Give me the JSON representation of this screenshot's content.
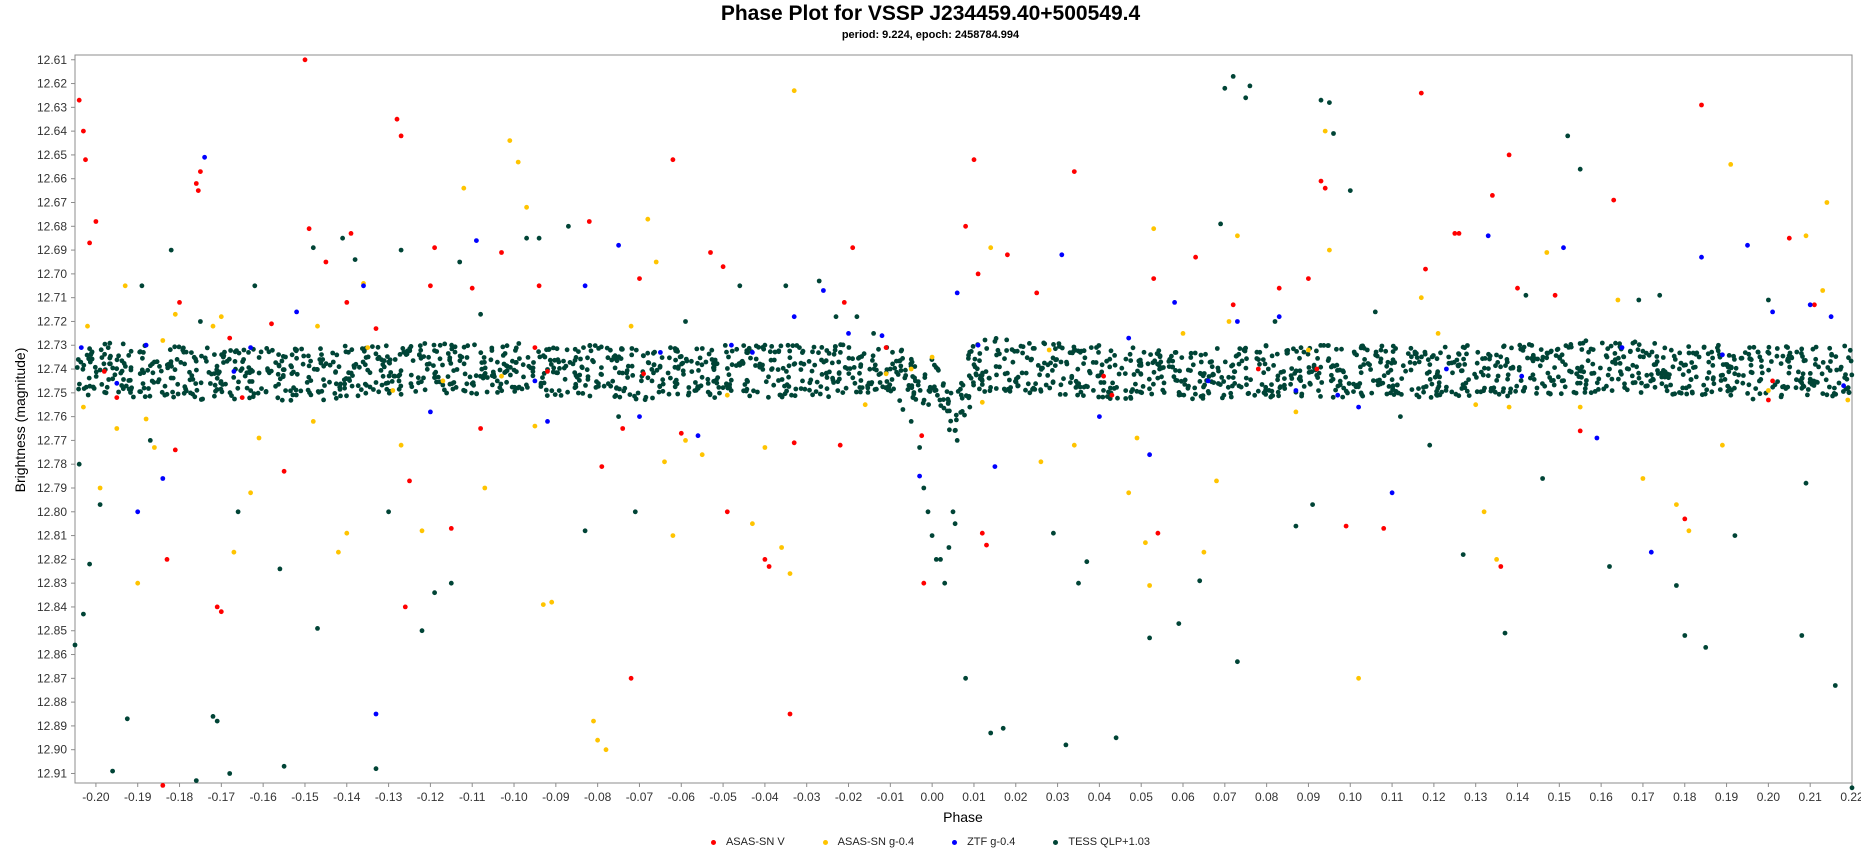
{
  "chart_data": {
    "type": "scatter",
    "title": "Phase Plot for VSSP J234459.40+500549.4",
    "subtitle": "period: 9.224, epoch: 2458784.994",
    "xlabel": "Phase",
    "ylabel": "Brightness (magnitude)",
    "xlim": [
      -0.205,
      0.22
    ],
    "ylim": [
      12.608,
      12.914
    ],
    "y_inverted": true,
    "x_ticks": [
      "-0.20",
      "-0.19",
      "-0.18",
      "-0.17",
      "-0.16",
      "-0.15",
      "-0.14",
      "-0.13",
      "-0.12",
      "-0.11",
      "-0.10",
      "-0.09",
      "-0.08",
      "-0.07",
      "-0.06",
      "-0.05",
      "-0.04",
      "-0.03",
      "-0.02",
      "-0.01",
      "0.00",
      "0.01",
      "0.02",
      "0.03",
      "0.04",
      "0.05",
      "0.06",
      "0.07",
      "0.08",
      "0.09",
      "0.10",
      "0.11",
      "0.12",
      "0.13",
      "0.14",
      "0.15",
      "0.16",
      "0.17",
      "0.18",
      "0.19",
      "0.20",
      "0.21",
      "0.22"
    ],
    "y_ticks": [
      "12.61",
      "12.62",
      "12.63",
      "12.64",
      "12.65",
      "12.66",
      "12.67",
      "12.68",
      "12.69",
      "12.70",
      "12.71",
      "12.72",
      "12.73",
      "12.74",
      "12.75",
      "12.76",
      "12.77",
      "12.78",
      "12.79",
      "12.80",
      "12.81",
      "12.82",
      "12.83",
      "12.84",
      "12.85",
      "12.86",
      "12.87",
      "12.88",
      "12.89",
      "12.90",
      "12.91"
    ],
    "grid": false,
    "legend_position": "bottom-center",
    "series": [
      {
        "name": "ASAS-SN V",
        "color": "#ff0000",
        "x": [
          -0.204,
          -0.203,
          -0.2025,
          -0.2015,
          -0.2,
          -0.198,
          -0.195,
          -0.184,
          -0.183,
          -0.181,
          -0.18,
          -0.176,
          -0.1755,
          -0.175,
          -0.171,
          -0.17,
          -0.168,
          -0.165,
          -0.158,
          -0.155,
          -0.15,
          -0.149,
          -0.145,
          -0.14,
          -0.139,
          -0.133,
          -0.128,
          -0.127,
          -0.126,
          -0.125,
          -0.12,
          -0.119,
          -0.115,
          -0.11,
          -0.108,
          -0.103,
          -0.095,
          -0.094,
          -0.092,
          -0.082,
          -0.079,
          -0.074,
          -0.072,
          -0.07,
          -0.069,
          -0.062,
          -0.06,
          -0.053,
          -0.05,
          -0.049,
          -0.04,
          -0.039,
          -0.034,
          -0.033,
          -0.022,
          -0.021,
          -0.019,
          -0.011,
          -0.0025,
          -0.002,
          0.008,
          0.01,
          0.011,
          0.012,
          0.013,
          0.018,
          0.025,
          0.034,
          0.041,
          0.043,
          0.053,
          0.054,
          0.063,
          0.072,
          0.078,
          0.083,
          0.09,
          0.092,
          0.093,
          0.094,
          0.099,
          0.108,
          0.117,
          0.118,
          0.125,
          0.126,
          0.134,
          0.136,
          0.138,
          0.14,
          0.149,
          0.155,
          0.163,
          0.18,
          0.184,
          0.2,
          0.201,
          0.205,
          0.211
        ],
        "y": [
          12.627,
          12.64,
          12.652,
          12.687,
          12.678,
          12.741,
          12.752,
          12.915,
          12.82,
          12.774,
          12.712,
          12.662,
          12.665,
          12.657,
          12.84,
          12.842,
          12.727,
          12.752,
          12.721,
          12.783,
          12.61,
          12.681,
          12.695,
          12.712,
          12.683,
          12.723,
          12.635,
          12.642,
          12.84,
          12.787,
          12.705,
          12.689,
          12.807,
          12.706,
          12.765,
          12.691,
          12.731,
          12.705,
          12.741,
          12.678,
          12.781,
          12.765,
          12.87,
          12.702,
          12.742,
          12.652,
          12.767,
          12.691,
          12.697,
          12.8,
          12.82,
          12.823,
          12.885,
          12.771,
          12.772,
          12.712,
          12.689,
          12.731,
          12.768,
          12.83,
          12.68,
          12.652,
          12.7,
          12.809,
          12.814,
          12.692,
          12.708,
          12.657,
          12.743,
          12.751,
          12.702,
          12.809,
          12.693,
          12.713,
          12.74,
          12.706,
          12.702,
          12.74,
          12.661,
          12.664,
          12.806,
          12.807,
          12.624,
          12.698,
          12.683,
          12.683,
          12.667,
          12.823,
          12.65,
          12.706,
          12.709,
          12.766,
          12.669,
          12.803,
          12.629,
          12.753,
          12.745,
          12.685,
          12.713
        ]
      },
      {
        "name": "ASAS-SN g-0.4",
        "color": "#ffc400",
        "x": [
          -0.203,
          -0.202,
          -0.199,
          -0.195,
          -0.193,
          -0.19,
          -0.188,
          -0.186,
          -0.184,
          -0.181,
          -0.172,
          -0.17,
          -0.167,
          -0.163,
          -0.161,
          -0.148,
          -0.147,
          -0.142,
          -0.14,
          -0.136,
          -0.135,
          -0.129,
          -0.127,
          -0.122,
          -0.117,
          -0.112,
          -0.107,
          -0.103,
          -0.101,
          -0.099,
          -0.097,
          -0.095,
          -0.093,
          -0.091,
          -0.081,
          -0.08,
          -0.078,
          -0.072,
          -0.068,
          -0.066,
          -0.064,
          -0.062,
          -0.059,
          -0.055,
          -0.049,
          -0.043,
          -0.04,
          -0.036,
          -0.034,
          -0.033,
          -0.016,
          -0.011,
          -0.005,
          0.0,
          0.012,
          0.014,
          0.026,
          0.028,
          0.034,
          0.047,
          0.049,
          0.051,
          0.052,
          0.053,
          0.06,
          0.065,
          0.068,
          0.071,
          0.073,
          0.087,
          0.09,
          0.094,
          0.095,
          0.102,
          0.117,
          0.121,
          0.13,
          0.132,
          0.135,
          0.138,
          0.147,
          0.155,
          0.164,
          0.17,
          0.178,
          0.181,
          0.189,
          0.191,
          0.2,
          0.209,
          0.213,
          0.214,
          0.219
        ],
        "y": [
          12.756,
          12.722,
          12.79,
          12.765,
          12.705,
          12.83,
          12.761,
          12.773,
          12.728,
          12.717,
          12.722,
          12.718,
          12.817,
          12.792,
          12.769,
          12.762,
          12.722,
          12.817,
          12.809,
          12.704,
          12.731,
          12.749,
          12.772,
          12.808,
          12.745,
          12.664,
          12.79,
          12.743,
          12.644,
          12.653,
          12.672,
          12.764,
          12.839,
          12.838,
          12.888,
          12.896,
          12.9,
          12.722,
          12.677,
          12.695,
          12.779,
          12.81,
          12.77,
          12.776,
          12.751,
          12.805,
          12.773,
          12.815,
          12.826,
          12.623,
          12.755,
          12.742,
          12.74,
          12.735,
          12.754,
          12.689,
          12.779,
          12.732,
          12.772,
          12.792,
          12.769,
          12.813,
          12.831,
          12.681,
          12.725,
          12.817,
          12.787,
          12.72,
          12.684,
          12.758,
          12.732,
          12.64,
          12.69,
          12.87,
          12.71,
          12.725,
          12.755,
          12.8,
          12.82,
          12.756,
          12.691,
          12.756,
          12.711,
          12.786,
          12.797,
          12.808,
          12.772,
          12.654,
          12.749,
          12.684,
          12.707,
          12.67,
          12.753
        ]
      },
      {
        "name": "ZTF g-0.4",
        "color": "#0000ff",
        "x": [
          -0.2035,
          -0.195,
          -0.19,
          -0.188,
          -0.184,
          -0.174,
          -0.167,
          -0.163,
          -0.152,
          -0.136,
          -0.133,
          -0.12,
          -0.109,
          -0.095,
          -0.092,
          -0.083,
          -0.075,
          -0.07,
          -0.065,
          -0.056,
          -0.048,
          -0.043,
          -0.033,
          -0.026,
          -0.02,
          -0.012,
          -0.003,
          0.006,
          0.011,
          0.015,
          0.031,
          0.04,
          0.047,
          0.052,
          0.058,
          0.066,
          0.073,
          0.083,
          0.087,
          0.097,
          0.102,
          0.11,
          0.123,
          0.133,
          0.141,
          0.151,
          0.159,
          0.165,
          0.172,
          0.184,
          0.189,
          0.195,
          0.201,
          0.21,
          0.215,
          0.218
        ],
        "y": [
          12.731,
          12.746,
          12.8,
          12.73,
          12.786,
          12.651,
          12.741,
          12.731,
          12.716,
          12.705,
          12.885,
          12.758,
          12.686,
          12.745,
          12.762,
          12.705,
          12.688,
          12.76,
          12.733,
          12.768,
          12.73,
          12.733,
          12.718,
          12.707,
          12.725,
          12.726,
          12.785,
          12.708,
          12.73,
          12.781,
          12.692,
          12.76,
          12.727,
          12.776,
          12.712,
          12.745,
          12.72,
          12.718,
          12.749,
          12.751,
          12.756,
          12.792,
          12.74,
          12.684,
          12.743,
          12.689,
          12.769,
          12.731,
          12.817,
          12.693,
          12.734,
          12.688,
          12.716,
          12.713,
          12.718,
          12.747
        ]
      },
      {
        "name": "TESS QLP+1.03",
        "color": "#004436",
        "x": [
          -0.205,
          -0.203,
          -0.204,
          -0.2015,
          -0.199,
          -0.196,
          -0.1925,
          -0.189,
          -0.187,
          -0.182,
          -0.176,
          -0.175,
          -0.172,
          -0.171,
          -0.168,
          -0.166,
          -0.162,
          -0.156,
          -0.155,
          -0.148,
          -0.147,
          -0.141,
          -0.138,
          -0.133,
          -0.13,
          -0.127,
          -0.122,
          -0.119,
          -0.115,
          -0.113,
          -0.108,
          -0.104,
          -0.097,
          -0.094,
          -0.087,
          -0.083,
          -0.075,
          -0.071,
          -0.067,
          -0.059,
          -0.052,
          -0.046,
          -0.04,
          -0.035,
          -0.031,
          -0.027,
          -0.023,
          -0.018,
          -0.014,
          -0.01,
          -0.007,
          -0.005,
          -0.004,
          -0.003,
          -0.002,
          -0.001,
          0.0,
          0.001,
          0.002,
          0.003,
          0.004,
          0.005,
          0.0055,
          0.006,
          0.007,
          0.008,
          0.009,
          0.0115,
          0.014,
          0.017,
          0.029,
          0.032,
          0.035,
          0.037,
          0.044,
          0.052,
          0.059,
          0.064,
          0.069,
          0.07,
          0.072,
          0.073,
          0.075,
          0.076,
          0.082,
          0.087,
          0.091,
          0.093,
          0.095,
          0.096,
          0.1,
          0.106,
          0.112,
          0.119,
          0.127,
          0.137,
          0.142,
          0.146,
          0.152,
          0.155,
          0.162,
          0.169,
          0.174,
          0.178,
          0.185,
          0.18,
          0.192,
          0.2,
          0.208,
          0.209,
          0.216,
          0.22
        ],
        "y": [
          12.856,
          12.843,
          12.78,
          12.822,
          12.797,
          12.909,
          12.887,
          12.705,
          12.77,
          12.69,
          12.913,
          12.72,
          12.886,
          12.888,
          12.91,
          12.8,
          12.705,
          12.824,
          12.907,
          12.689,
          12.849,
          12.685,
          12.694,
          12.908,
          12.8,
          12.69,
          12.85,
          12.834,
          12.83,
          12.695,
          12.717,
          12.745,
          12.685,
          12.685,
          12.68,
          12.808,
          12.76,
          12.8,
          12.745,
          12.72,
          12.752,
          12.705,
          12.73,
          12.705,
          12.745,
          12.703,
          12.718,
          12.718,
          12.725,
          12.74,
          12.757,
          12.762,
          12.745,
          12.773,
          12.79,
          12.8,
          12.81,
          12.82,
          12.82,
          12.83,
          12.815,
          12.8,
          12.805,
          12.77,
          12.746,
          12.87,
          12.756,
          12.744,
          12.893,
          12.891,
          12.809,
          12.898,
          12.83,
          12.821,
          12.895,
          12.853,
          12.847,
          12.829,
          12.679,
          12.622,
          12.617,
          12.863,
          12.626,
          12.621,
          12.72,
          12.806,
          12.797,
          12.627,
          12.628,
          12.641,
          12.665,
          12.716,
          12.76,
          12.772,
          12.818,
          12.851,
          12.709,
          12.786,
          12.642,
          12.656,
          12.823,
          12.711,
          12.709,
          12.831,
          12.857,
          12.852,
          12.81,
          12.711,
          12.852,
          12.788,
          12.873,
          12.916
        ]
      }
    ],
    "background_band": {
      "x": [
        -0.205,
        -0.2,
        -0.195,
        -0.19,
        -0.185,
        -0.18,
        -0.175,
        -0.17,
        -0.165,
        -0.16,
        -0.155,
        -0.15,
        -0.145,
        -0.14,
        -0.135,
        -0.13,
        -0.125,
        -0.12,
        -0.115,
        -0.11,
        -0.105,
        -0.1,
        -0.095,
        -0.09,
        -0.085,
        -0.08,
        -0.075,
        -0.07,
        -0.065,
        -0.06,
        -0.055,
        -0.05,
        -0.045,
        -0.04,
        -0.035,
        -0.03,
        -0.025,
        -0.02,
        -0.015,
        -0.01,
        -0.005,
        0.0,
        0.005,
        0.01,
        0.015,
        0.02,
        0.025,
        0.03,
        0.035,
        0.04,
        0.045,
        0.05,
        0.055,
        0.06,
        0.065,
        0.07,
        0.075,
        0.08,
        0.085,
        0.09,
        0.095,
        0.1,
        0.105,
        0.11,
        0.115,
        0.12,
        0.125,
        0.13,
        0.135,
        0.14,
        0.145,
        0.15,
        0.155,
        0.16,
        0.165,
        0.17,
        0.175,
        0.18,
        0.185,
        0.19,
        0.195,
        0.2,
        0.205,
        0.21,
        0.215,
        0.22
      ],
      "y": [
        12.74,
        12.74,
        12.74,
        12.741,
        12.741,
        12.741,
        12.742,
        12.742,
        12.742,
        12.742,
        12.743,
        12.742,
        12.742,
        12.741,
        12.741,
        12.741,
        12.741,
        12.74,
        12.74,
        12.74,
        12.74,
        12.74,
        12.741,
        12.741,
        12.741,
        12.741,
        12.742,
        12.742,
        12.742,
        12.742,
        12.742,
        12.741,
        12.741,
        12.741,
        12.741,
        12.741,
        12.741,
        12.74,
        12.74,
        12.741,
        12.744,
        12.745,
        12.76,
        12.739,
        12.738,
        12.739,
        12.739,
        12.74,
        12.741,
        12.741,
        12.742,
        12.742,
        12.742,
        12.742,
        12.742,
        12.742,
        12.741,
        12.741,
        12.741,
        12.741,
        12.741,
        12.741,
        12.741,
        12.741,
        12.741,
        12.741,
        12.741,
        12.741,
        12.741,
        12.74,
        12.74,
        12.74,
        12.739,
        12.739,
        12.739,
        12.739,
        12.74,
        12.74,
        12.741,
        12.741,
        12.742,
        12.741,
        12.741,
        12.741,
        12.741,
        12.741
      ],
      "scatter_magnitudes": 0.011,
      "points_per_phase_step": 3,
      "color": "#004436"
    }
  }
}
